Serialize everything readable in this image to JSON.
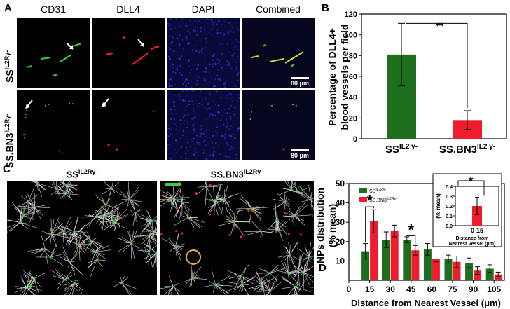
{
  "panel_a": {
    "label": "A",
    "columns": [
      "CD31",
      "DLL4",
      "DAPI",
      "Combined"
    ],
    "row_labels": [
      {
        "base": "SS",
        "sup": "IL2Rγ-"
      },
      {
        "base": "SS.BN3",
        "sup": "IL2Rγ-"
      }
    ],
    "scale_bar": "80 μm"
  },
  "panel_b": {
    "label": "B",
    "significance": "**"
  },
  "panel_c": {
    "label": "C",
    "titles": [
      {
        "base": "SS",
        "sup": "IL2Rγ-"
      },
      {
        "base": "SS.BN3",
        "sup": "IL2Rγ-"
      }
    ]
  },
  "panel_d": {
    "label": "D",
    "significance": "*",
    "legend": [
      {
        "base": "SS",
        "sup": "IL2Rγ-",
        "color": "#1d6e1d"
      },
      {
        "base": "SS.BN3",
        "sup": "IL2Rγ-",
        "color": "#ee1c2c"
      }
    ]
  },
  "colors": {
    "green": "#1d6e1d",
    "red": "#ee1c2c",
    "micro_green": "#39d43a",
    "micro_red": "#ff2222",
    "dapi": "#1a1a8a"
  },
  "chart_data": [
    {
      "type": "bar",
      "panel": "B",
      "categories": [
        "SS",
        "SS.BN3"
      ],
      "category_sups": [
        "IL2 γ-",
        "IL2 γ-"
      ],
      "values": [
        81,
        18
      ],
      "errors": [
        30,
        9
      ],
      "colors": [
        "#1d6e1d",
        "#ee1c2c"
      ],
      "ylabel": "Percentage of DLL4+ blood vessels per field",
      "ylabel_lines": [
        "Percentage of DLL4+",
        "blood vessels per field"
      ],
      "ylim": [
        0,
        120
      ],
      "yticks": [
        0,
        20,
        40,
        60,
        80,
        100,
        120
      ]
    },
    {
      "type": "bar",
      "panel": "D",
      "x": [
        15,
        30,
        45,
        60,
        75,
        90,
        105
      ],
      "xticks": [
        0,
        15,
        30,
        45,
        60,
        75,
        90,
        105
      ],
      "series": [
        {
          "name": "SS IL2Rγ-",
          "values": [
            15,
            21,
            21,
            16,
            11,
            9,
            6
          ],
          "errors": [
            4,
            4,
            1.5,
            3,
            2,
            2.5,
            2
          ]
        },
        {
          "name": "SS.BN3 IL2Rγ-",
          "values": [
            30.5,
            25.5,
            15.5,
            11,
            9.5,
            5,
            3
          ],
          "errors": [
            6,
            3,
            2.5,
            1.5,
            3,
            2,
            1.2
          ]
        }
      ],
      "xlabel": "Distance from Nearest Vessel (μm)",
      "ylabel": "NPs distribution (% mean)",
      "ylabel_lines": [
        "NPs distribution",
        "(% mean)"
      ],
      "ylim": [
        0,
        50
      ],
      "yticks": [
        10,
        20,
        30,
        40,
        50
      ]
    },
    {
      "type": "bar",
      "panel": "D-inset",
      "categories": [
        "0-15"
      ],
      "values": [
        0.2
      ],
      "errors": [
        0.09
      ],
      "color": "#ee1c2c",
      "ylabel": "(% mean)",
      "xlabel_lines": [
        "Distance from",
        "Nearest Vessel (μm)"
      ],
      "ylim": [
        0.0,
        0.4
      ],
      "yticks": [
        "0.0",
        "0.1",
        "0.2",
        "0.3",
        "0.4"
      ]
    }
  ]
}
